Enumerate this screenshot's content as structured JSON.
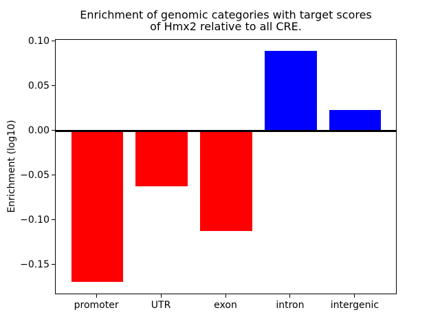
{
  "chart_data": {
    "type": "bar",
    "title": "Enrichment of genomic categories with target scores\nof Hmx2 relative to all CRE.",
    "title_lines": [
      "Enrichment of genomic categories with target scores",
      "of Hmx2 relative to all CRE."
    ],
    "xlabel": "",
    "ylabel": "Enrichment (log10)",
    "categories": [
      "promoter",
      "UTR",
      "exon",
      "intron",
      "intergenic"
    ],
    "values": [
      -0.169,
      -0.062,
      -0.112,
      0.09,
      0.024
    ],
    "bar_colors": [
      "#ff0000",
      "#ff0000",
      "#ff0000",
      "#0000ff",
      "#0000ff"
    ],
    "negative_color": "#ff0000",
    "positive_color": "#0000ff",
    "bar_width": 0.8,
    "xlim": [
      -0.64,
      4.64
    ],
    "ylim": [
      -0.1825,
      0.1022
    ],
    "yticks": [
      0.1,
      0.05,
      0.0,
      -0.05,
      -0.1,
      -0.15
    ],
    "ytick_labels": [
      "0.10",
      "0.05",
      "0.00",
      "−0.05",
      "−0.10",
      "−0.15"
    ],
    "grid": false,
    "legend": null,
    "zero_line": true,
    "axes_box": true,
    "background_color": "#ffffff",
    "text_color": "#000000"
  }
}
